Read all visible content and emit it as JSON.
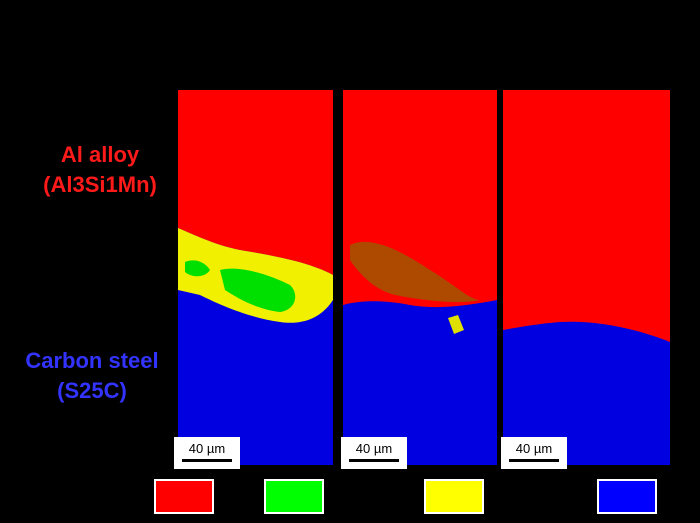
{
  "labels": {
    "top_material": {
      "name": "Al alloy",
      "composition": "(Al3Si1Mn)"
    },
    "bottom_material": {
      "name": "Carbon steel",
      "composition": "(S25C)"
    }
  },
  "panels": [
    {
      "scale_bar": "40 µm"
    },
    {
      "scale_bar": "40 µm"
    },
    {
      "scale_bar": "40 µm"
    }
  ],
  "legend": {
    "colors": [
      "#ff0000",
      "#00ff00",
      "#ffff00",
      "#0000ff"
    ]
  }
}
